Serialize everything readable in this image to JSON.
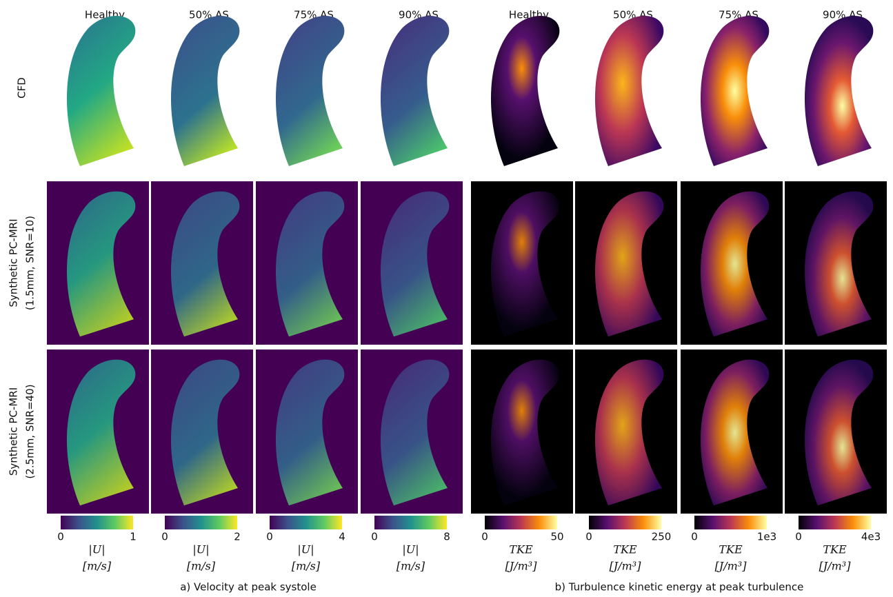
{
  "column_titles": [
    "Healthy",
    "50% AS",
    "75% AS",
    "90% AS",
    "Healthy",
    "50% AS",
    "75% AS",
    "90% AS"
  ],
  "row_labels": [
    [
      "CFD"
    ],
    [
      "Synthetic PC-MRI",
      "(1.5mm, SNR=10)"
    ],
    [
      "Synthetic PC-MRI",
      "(2.5mm, SNR=40)"
    ]
  ],
  "colorbars": [
    {
      "min": "0",
      "max": "1",
      "quantity": "|U|",
      "unit": "[m/s]"
    },
    {
      "min": "0",
      "max": "2",
      "quantity": "|U|",
      "unit": "[m/s]"
    },
    {
      "min": "0",
      "max": "4",
      "quantity": "|U|",
      "unit": "[m/s]"
    },
    {
      "min": "0",
      "max": "8",
      "quantity": "|U|",
      "unit": "[m/s]"
    },
    {
      "min": "0",
      "max": "50",
      "quantity": "TKE",
      "unit": "[J/m³]"
    },
    {
      "min": "0",
      "max": "250",
      "quantity": "TKE",
      "unit": "[J/m³]"
    },
    {
      "min": "0",
      "max": "1e3",
      "quantity": "TKE",
      "unit": "[J/m³]"
    },
    {
      "min": "0",
      "max": "4e3",
      "quantity": "TKE",
      "unit": "[J/m³]"
    }
  ],
  "captions": [
    "a) Velocity at peak systole",
    "b) Turbulence kinetic energy at peak turbulence"
  ]
}
